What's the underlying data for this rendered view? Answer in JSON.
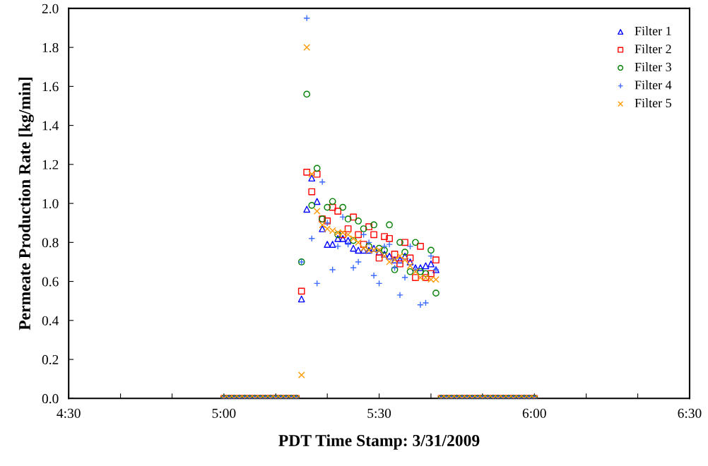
{
  "chart_data": {
    "type": "scatter",
    "xlabel": "PDT Time Stamp: 3/31/2009",
    "ylabel": "Permeate Production Rate [kg/min]",
    "x": [
      5.0,
      5.017,
      5.033,
      5.05,
      5.067,
      5.083,
      5.1,
      5.117,
      5.133,
      5.15,
      5.167,
      5.183,
      5.2,
      5.217,
      5.233,
      5.25,
      5.267,
      5.283,
      5.3,
      5.317,
      5.333,
      5.35,
      5.367,
      5.383,
      5.4,
      5.417,
      5.433,
      5.45,
      5.467,
      5.483,
      5.5,
      5.517,
      5.533,
      5.55,
      5.567,
      5.583,
      5.6,
      5.617,
      5.633,
      5.65,
      5.667,
      5.683,
      5.7,
      5.717,
      5.733,
      5.75,
      5.767,
      5.783,
      5.8,
      5.817,
      5.833,
      5.85,
      5.867,
      5.883,
      5.9,
      5.917,
      5.933,
      5.95,
      5.967,
      5.983,
      6.0
    ],
    "series": [
      {
        "name": "Filter 1",
        "color": "#0000ff",
        "marker": "triangle",
        "values": [
          0,
          0,
          0,
          0,
          0,
          0,
          0,
          0,
          0,
          0,
          0,
          0,
          0,
          0,
          0,
          0.51,
          0.97,
          1.13,
          1.01,
          0.87,
          0.79,
          0.79,
          0.82,
          0.82,
          0.81,
          0.77,
          0.76,
          0.76,
          0.76,
          0.77,
          0.75,
          0.74,
          0.73,
          0.71,
          0.71,
          0.73,
          0.7,
          0.67,
          0.67,
          0.68,
          0.69,
          0.66,
          0,
          0,
          0,
          0,
          0,
          0,
          0,
          0,
          0,
          0,
          0,
          0,
          0,
          0,
          0,
          0,
          0,
          0,
          0
        ]
      },
      {
        "name": "Filter 2",
        "color": "#ff0000",
        "marker": "square",
        "values": [
          0,
          0,
          0,
          0,
          0,
          0,
          0,
          0,
          0,
          0,
          0,
          0,
          0,
          0,
          0,
          0.55,
          1.16,
          1.06,
          1.15,
          0.92,
          0.91,
          0.98,
          0.96,
          0.84,
          0.87,
          0.93,
          0.84,
          0.79,
          0.88,
          0.84,
          0.72,
          0.83,
          0.82,
          0.74,
          0.69,
          0.8,
          0.72,
          0.62,
          0.78,
          0.62,
          0.64,
          0.71,
          0,
          0,
          0,
          0,
          0,
          0,
          0,
          0,
          0,
          0,
          0,
          0,
          0,
          0,
          0,
          0,
          0,
          0,
          0
        ]
      },
      {
        "name": "Filter 3",
        "color": "#008000",
        "marker": "circle",
        "values": [
          0,
          0,
          0,
          0,
          0,
          0,
          0,
          0,
          0,
          0,
          0,
          0,
          0,
          0,
          0,
          0.7,
          1.56,
          0.99,
          1.18,
          0.92,
          0.98,
          1.01,
          0.84,
          0.98,
          0.92,
          0.81,
          0.91,
          0.87,
          0.78,
          0.89,
          0.77,
          0.76,
          0.89,
          0.66,
          0.8,
          0.75,
          0.65,
          0.8,
          0.65,
          0.64,
          0.76,
          0.54,
          0,
          0,
          0,
          0,
          0,
          0,
          0,
          0,
          0,
          0,
          0,
          0,
          0,
          0,
          0,
          0,
          0,
          0,
          0
        ]
      },
      {
        "name": "Filter 4",
        "color": "#3d6bff",
        "marker": "cross",
        "values": [
          0,
          0,
          0,
          0,
          0,
          0,
          0,
          0,
          0,
          0,
          0,
          0,
          0,
          0,
          0,
          0.7,
          1.95,
          0.82,
          0.59,
          1.11,
          0.9,
          0.66,
          0.78,
          0.93,
          0.79,
          0.67,
          0.7,
          0.84,
          0.8,
          0.63,
          0.59,
          0.78,
          0.79,
          0.67,
          0.53,
          0.62,
          0.78,
          0.66,
          0.48,
          0.49,
          0.73,
          0.66,
          0,
          0,
          0,
          0,
          0,
          0,
          0,
          0,
          0,
          0,
          0,
          0,
          0,
          0,
          0,
          0,
          0,
          0,
          0
        ]
      },
      {
        "name": "Filter 5",
        "color": "#ff9900",
        "marker": "x",
        "values": [
          0,
          0,
          0,
          0,
          0,
          0,
          0,
          0,
          0,
          0,
          0,
          0,
          0,
          0,
          0,
          0.12,
          1.8,
          1.15,
          0.96,
          0.89,
          0.87,
          0.86,
          0.85,
          0.85,
          0.84,
          0.82,
          0.8,
          0.77,
          0.76,
          0.76,
          0.76,
          0.73,
          0.7,
          0.71,
          0.73,
          0.71,
          0.68,
          0.65,
          0.62,
          0.62,
          0.61,
          0.61,
          0,
          0,
          0,
          0,
          0,
          0,
          0,
          0,
          0,
          0,
          0,
          0,
          0,
          0,
          0,
          0,
          0,
          0,
          0
        ]
      }
    ],
    "xlim": [
      4.5,
      6.5
    ],
    "xticks": [
      {
        "value": 4.5,
        "label": "4:30"
      },
      {
        "value": 4.667,
        "label": null
      },
      {
        "value": 4.833,
        "label": null
      },
      {
        "value": 5.0,
        "label": "5:00"
      },
      {
        "value": 5.167,
        "label": null
      },
      {
        "value": 5.333,
        "label": null
      },
      {
        "value": 5.5,
        "label": "5:30"
      },
      {
        "value": 5.667,
        "label": null
      },
      {
        "value": 5.833,
        "label": null
      },
      {
        "value": 6.0,
        "label": "6:00"
      },
      {
        "value": 6.167,
        "label": null
      },
      {
        "value": 6.333,
        "label": null
      },
      {
        "value": 6.5,
        "label": "6:30"
      }
    ],
    "ylim": [
      0,
      2.0
    ],
    "yticks": [
      {
        "value": 0,
        "label": "0.0"
      },
      {
        "value": 0.2,
        "label": "0.2"
      },
      {
        "value": 0.4,
        "label": "0.4"
      },
      {
        "value": 0.6,
        "label": "0.6"
      },
      {
        "value": 0.8,
        "label": "0.8"
      },
      {
        "value": 1.0,
        "label": "1.0"
      },
      {
        "value": 1.2,
        "label": "1.2"
      },
      {
        "value": 1.4,
        "label": "1.4"
      },
      {
        "value": 1.6,
        "label": "1.6"
      },
      {
        "value": 1.8,
        "label": "1.8"
      },
      {
        "value": 2.0,
        "label": "2.0"
      }
    ],
    "grid": false,
    "legend": "top right"
  }
}
